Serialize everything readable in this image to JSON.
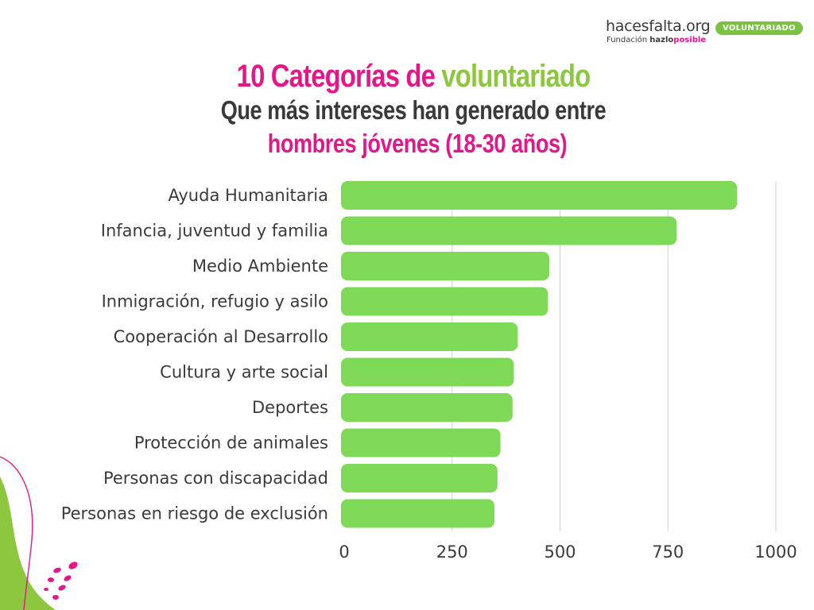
{
  "brand": {
    "name": "hacesfalta.org",
    "sub_prefix": "Fundación ",
    "sub_bold_1": "hazlo",
    "sub_bold_2": "posible",
    "badge": "VOLUNTARIADO"
  },
  "title": {
    "part1": "10 Categorías de ",
    "part2": "voluntariado",
    "line2": "Que más intereses han generado entre",
    "line3": "hombres jóvenes (18-30 años)"
  },
  "colors": {
    "bar": "#7ed957",
    "accent_pink": "#e4178a",
    "accent_green": "#8dc63f",
    "text": "#3a3a3a",
    "grid": "#d0d0d0"
  },
  "chart_data": {
    "type": "bar",
    "orientation": "horizontal",
    "categories": [
      "Ayuda Humanitaria",
      "Infancia, juventud y familia",
      "Medio Ambiente",
      "Inmigración, refugio y asilo",
      "Cooperación al Desarrollo",
      "Cultura y arte social",
      "Deportes",
      "Protección de animales",
      "Personas con discapacidad",
      "Personas en riesgo de exclusión"
    ],
    "values": [
      910,
      770,
      475,
      472,
      402,
      393,
      390,
      362,
      355,
      348
    ],
    "xlim": [
      0,
      1000
    ],
    "xticks": [
      0,
      250,
      500,
      750,
      1000
    ],
    "xtick_labels": [
      "0",
      "250",
      "500",
      "750",
      "1000"
    ],
    "grid": true
  }
}
